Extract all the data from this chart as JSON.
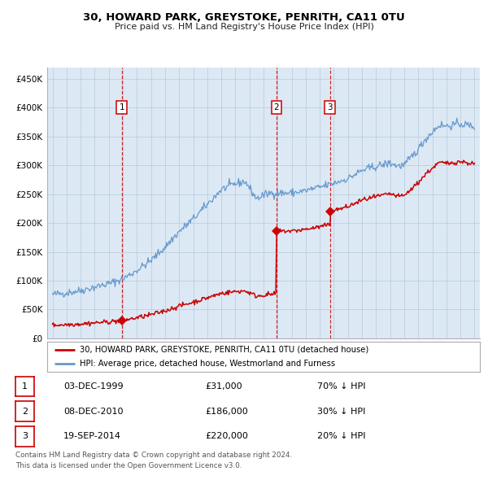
{
  "title": "30, HOWARD PARK, GREYSTOKE, PENRITH, CA11 0TU",
  "subtitle": "Price paid vs. HM Land Registry's House Price Index (HPI)",
  "plot_bg_color": "#dce9f5",
  "red_line_color": "#cc0000",
  "blue_line_color": "#6699cc",
  "sale_points": [
    {
      "date_num": 1999.92,
      "price": 31000,
      "label": "1"
    },
    {
      "date_num": 2010.92,
      "price": 186000,
      "label": "2"
    },
    {
      "date_num": 2014.72,
      "price": 220000,
      "label": "3"
    }
  ],
  "vline_dates": [
    1999.92,
    2010.92,
    2014.72
  ],
  "xlim": [
    1994.6,
    2025.4
  ],
  "ylim": [
    0,
    470000
  ],
  "yticks": [
    0,
    50000,
    100000,
    150000,
    200000,
    250000,
    300000,
    350000,
    400000,
    450000
  ],
  "ytick_labels": [
    "£0",
    "£50K",
    "£100K",
    "£150K",
    "£200K",
    "£250K",
    "£300K",
    "£350K",
    "£400K",
    "£450K"
  ],
  "xticks": [
    1995,
    1996,
    1997,
    1998,
    1999,
    2000,
    2001,
    2002,
    2003,
    2004,
    2005,
    2006,
    2007,
    2008,
    2009,
    2010,
    2011,
    2012,
    2013,
    2014,
    2015,
    2016,
    2017,
    2018,
    2019,
    2020,
    2021,
    2022,
    2023,
    2024,
    2025
  ],
  "legend_red": "30, HOWARD PARK, GREYSTOKE, PENRITH, CA11 0TU (detached house)",
  "legend_blue": "HPI: Average price, detached house, Westmorland and Furness",
  "footer_line1": "Contains HM Land Registry data © Crown copyright and database right 2024.",
  "footer_line2": "This data is licensed under the Open Government Licence v3.0.",
  "table_data": [
    {
      "num": "1",
      "date": "03-DEC-1999",
      "price": "£31,000",
      "hpi": "70% ↓ HPI"
    },
    {
      "num": "2",
      "date": "08-DEC-2010",
      "price": "£186,000",
      "hpi": "30% ↓ HPI"
    },
    {
      "num": "3",
      "date": "19-SEP-2014",
      "price": "£220,000",
      "hpi": "20% ↓ HPI"
    }
  ],
  "hpi_key_x": [
    1995,
    1996,
    1997,
    1998,
    1999,
    2000,
    2001,
    2002,
    2003,
    2004,
    2005,
    2006,
    2007,
    2008,
    2008.7,
    2009.5,
    2010,
    2010.5,
    2011,
    2012,
    2013,
    2014,
    2015,
    2016,
    2017,
    2018,
    2019,
    2019.5,
    2020,
    2021,
    2021.5,
    2022,
    2022.5,
    2023,
    2024,
    2025
  ],
  "hpi_key_y": [
    76000,
    79000,
    83000,
    89000,
    95000,
    103000,
    118000,
    135000,
    158000,
    185000,
    207000,
    232000,
    258000,
    268000,
    272000,
    242000,
    248000,
    252000,
    252000,
    252000,
    256000,
    262000,
    269000,
    277000,
    291000,
    298000,
    304000,
    299000,
    300000,
    328000,
    345000,
    358000,
    370000,
    368000,
    372000,
    367000
  ]
}
